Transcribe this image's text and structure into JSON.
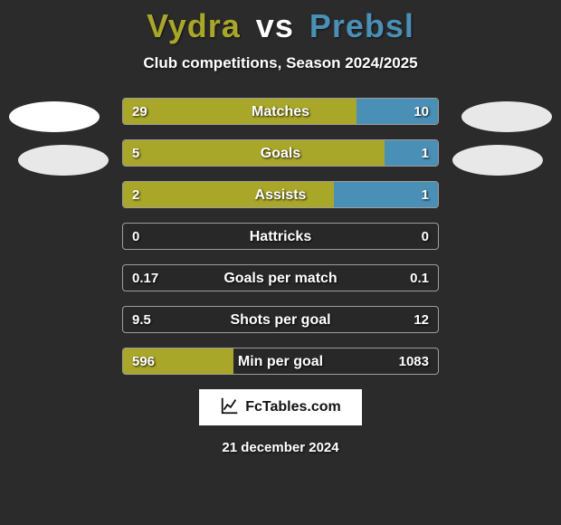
{
  "colors": {
    "background": "#2b2b2b",
    "player1": "#a9a729",
    "player2": "#4a8fb5",
    "vs": "#ffffff",
    "bar_outline": "rgba(255,255,255,.55)",
    "text": "#ffffff"
  },
  "header": {
    "player1": "Vydra",
    "vs": "vs",
    "player2": "Prebsl",
    "subtitle": "Club competitions, Season 2024/2025"
  },
  "stats": [
    {
      "label": "Matches",
      "left_val": "29",
      "right_val": "10",
      "left_pct": 74,
      "right_pct": 26
    },
    {
      "label": "Goals",
      "left_val": "5",
      "right_val": "1",
      "left_pct": 83,
      "right_pct": 17
    },
    {
      "label": "Assists",
      "left_val": "2",
      "right_val": "1",
      "left_pct": 67,
      "right_pct": 33
    },
    {
      "label": "Hattricks",
      "left_val": "0",
      "right_val": "0",
      "left_pct": 0,
      "right_pct": 0
    },
    {
      "label": "Goals per match",
      "left_val": "0.17",
      "right_val": "0.1",
      "left_pct": 0,
      "right_pct": 0
    },
    {
      "label": "Shots per goal",
      "left_val": "9.5",
      "right_val": "12",
      "left_pct": 0,
      "right_pct": 0
    },
    {
      "label": "Min per goal",
      "left_val": "596",
      "right_val": "1083",
      "left_pct": 35,
      "right_pct": 0
    }
  ],
  "footer": {
    "site": "FcTables.com",
    "date": "21 december 2024"
  }
}
